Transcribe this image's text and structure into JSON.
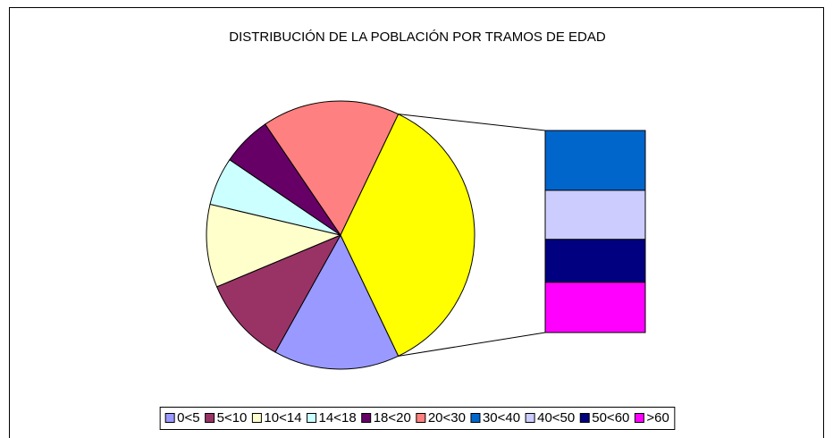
{
  "chart_data": {
    "type": "bar-of-pie",
    "title": "DISTRIBUCIÓN  DE LA POBLACIÓN POR TRAMOS DE EDAD",
    "categories": [
      "0<5",
      "5<10",
      "10<14",
      "14<18",
      "18<20",
      "20<30",
      "30<40",
      "40<50",
      "50<60",
      ">60"
    ],
    "values": [
      15.2,
      10.6,
      10,
      5.8,
      6,
      16.6,
      10.6,
      8.7,
      7.6,
      8.9
    ],
    "colors": [
      "#9999ff",
      "#993366",
      "#ffffcc",
      "#ccffff",
      "#660066",
      "#ff8080",
      "#0066cc",
      "#ccccff",
      "#000080",
      "#ff00ff"
    ],
    "other_color": "#ffff00",
    "second_plot_count": 4,
    "legend": "bottom"
  }
}
